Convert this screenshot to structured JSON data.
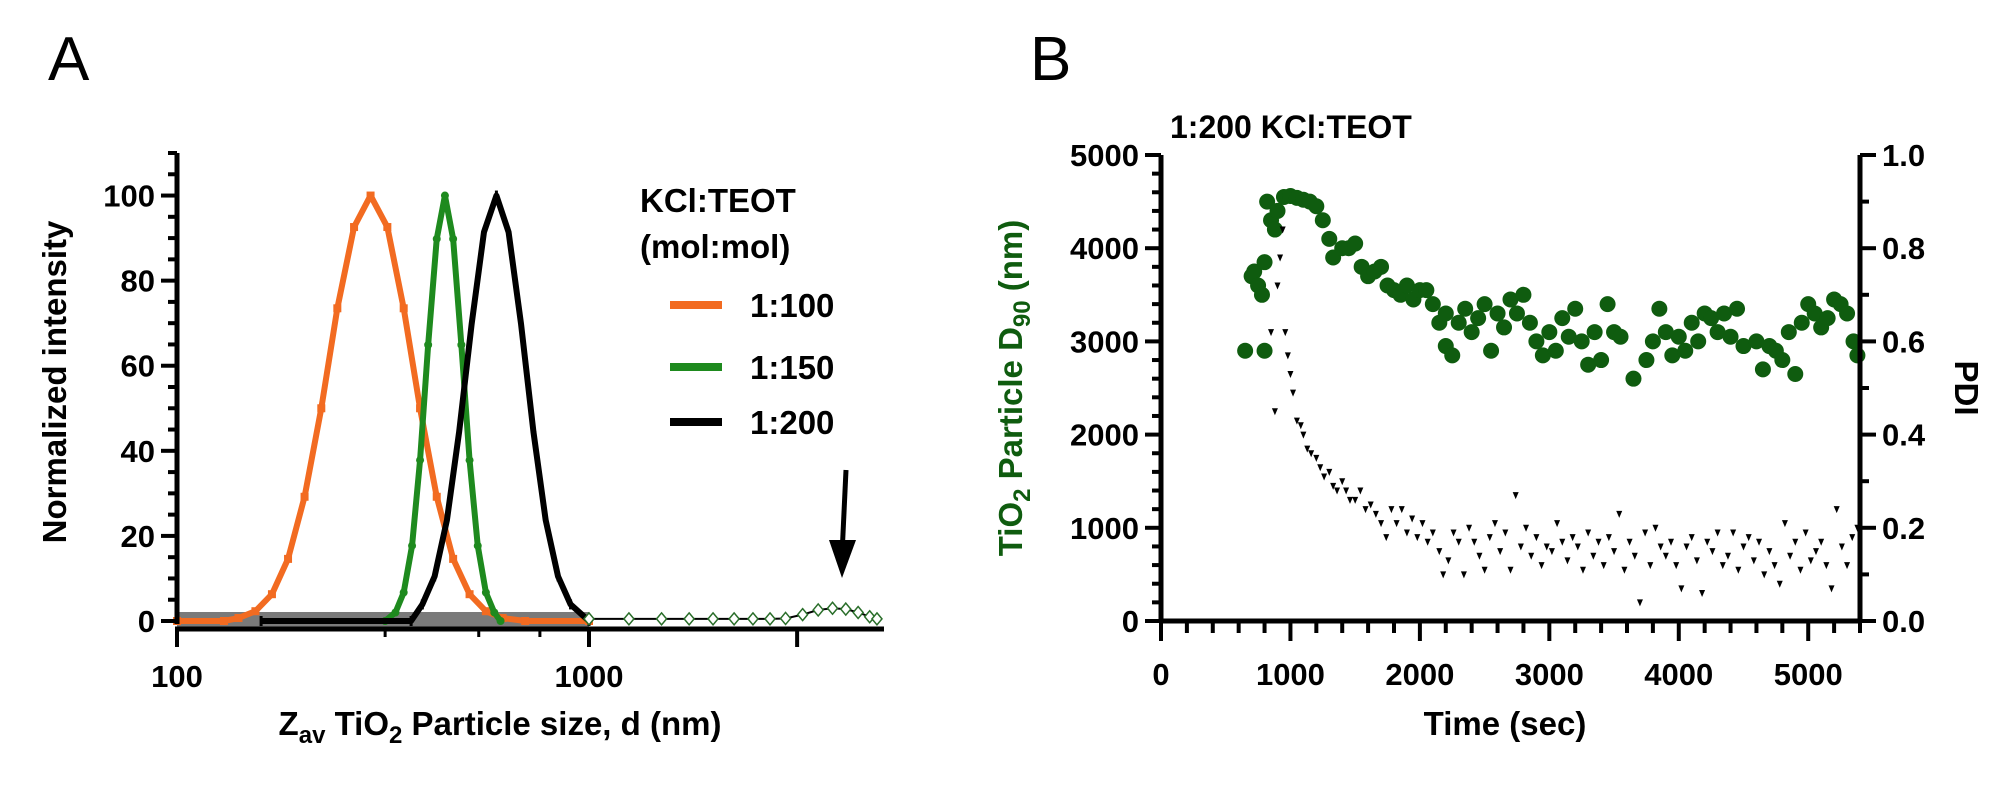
{
  "panels": {
    "a": "A",
    "b": "B"
  },
  "chart_data": [
    {
      "type": "line",
      "panel": "A",
      "xlabel_parts": {
        "z": "Z",
        "z_sub": "av",
        "tio": " TiO",
        "tio_sub": "2",
        "rest": " Particle size, d (nm)"
      },
      "ylabel": "Normalized intensity",
      "x_scale": "log",
      "xlim": [
        100,
        5200
      ],
      "ylim": [
        0,
        110
      ],
      "x_tick_labels": [
        "100",
        "1000"
      ],
      "y_tick_labels": [
        "0",
        "20",
        "40",
        "60",
        "80",
        "100"
      ],
      "legend": {
        "title": "KCl:TEOT",
        "subtitle": "(mol:mol)",
        "placement": "right"
      },
      "annotation": "arrow pointing down at small peak near 4000 nm",
      "series": [
        {
          "name": "1:100",
          "color": "#f26b21",
          "marker": "square",
          "x": [
            100,
            130,
            141,
            155,
            170,
            186,
            204,
            224,
            245,
            269,
            295,
            324,
            355,
            389,
            427,
            468,
            513,
            562,
            617,
            700,
            1000
          ],
          "y": [
            0,
            0,
            0.7,
            2.3,
            6.3,
            14.6,
            29.2,
            50,
            73.5,
            92.6,
            100,
            92.6,
            73.5,
            50,
            29.2,
            14.6,
            6.3,
            2.3,
            0.7,
            0,
            0
          ]
        },
        {
          "name": "1:150",
          "color": "#1e8a1e",
          "marker": "circle",
          "x": [
            320,
            339,
            355,
            372,
            389,
            407,
            427,
            447,
            468,
            490,
            513,
            537,
            562,
            589,
            610
          ],
          "y": [
            0,
            2.0,
            6.7,
            17.7,
            37.8,
            64.9,
            89.8,
            100,
            89.8,
            64.9,
            37.8,
            17.7,
            6.7,
            2.0,
            0
          ]
        },
        {
          "name": "1:200",
          "color": "#000000",
          "marker": "plus",
          "x": [
            160,
            370,
            394,
            422,
            452,
            484,
            519,
            556,
            596,
            638,
            684,
            733,
            785,
            841,
            902,
            1000
          ],
          "y": [
            0,
            0,
            3.9,
            10.5,
            23.7,
            44.5,
            69.8,
            91.4,
            100,
            91.4,
            69.8,
            44.5,
            23.7,
            10.5,
            3.9,
            0
          ]
        },
        {
          "color": "#2a6e2a",
          "marker": "diamond",
          "x": [
            1000,
            1250,
            1500,
            1750,
            2000,
            2250,
            2500,
            2750,
            3000,
            3300,
            3600,
            3900,
            4200,
            4500,
            4800,
            5000
          ],
          "y": [
            0.5,
            0.5,
            0.5,
            0.5,
            0.5,
            0.5,
            0.5,
            0.5,
            0.6,
            1.5,
            2.6,
            3.0,
            2.8,
            2.0,
            1.0,
            0.5
          ]
        }
      ]
    },
    {
      "type": "scatter",
      "panel": "B",
      "title": "1:200 KCl:TEOT",
      "xlabel": "Time (sec)",
      "ylabel_parts": {
        "a": "TiO",
        "a_sub": "2",
        "b": " Particle  D",
        "b_sub": "90",
        "c": "  (nm)"
      },
      "y2label": "PDI",
      "xlim": [
        0,
        5400
      ],
      "ylim": [
        0,
        5000
      ],
      "y2lim": [
        0,
        1.0
      ],
      "x_tick_labels": [
        "0",
        "1000",
        "2000",
        "3000",
        "4000",
        "5000"
      ],
      "y_tick_labels": [
        "0",
        "1000",
        "2000",
        "3000",
        "4000",
        "5000"
      ],
      "y2_tick_labels": [
        "0.0",
        "0.2",
        "0.4",
        "0.6",
        "0.8",
        "1.0"
      ],
      "series": [
        {
          "axis": "left",
          "color": "#0f5c0f",
          "marker": "circle",
          "points": [
            [
              650,
              2900
            ],
            [
              700,
              3700
            ],
            [
              720,
              3750
            ],
            [
              750,
              3600
            ],
            [
              780,
              3500
            ],
            [
              800,
              3850
            ],
            [
              800,
              2900
            ],
            [
              820,
              4500
            ],
            [
              850,
              4300
            ],
            [
              880,
              4200
            ],
            [
              900,
              4400
            ],
            [
              950,
              4550
            ],
            [
              1000,
              4560
            ],
            [
              1050,
              4540
            ],
            [
              1100,
              4520
            ],
            [
              1150,
              4500
            ],
            [
              1200,
              4450
            ],
            [
              1250,
              4300
            ],
            [
              1300,
              4100
            ],
            [
              1330,
              3900
            ],
            [
              1400,
              4000
            ],
            [
              1450,
              4000
            ],
            [
              1500,
              4050
            ],
            [
              1550,
              3800
            ],
            [
              1600,
              3700
            ],
            [
              1650,
              3750
            ],
            [
              1700,
              3800
            ],
            [
              1750,
              3600
            ],
            [
              1800,
              3550
            ],
            [
              1850,
              3500
            ],
            [
              1900,
              3600
            ],
            [
              1950,
              3450
            ],
            [
              2000,
              3550
            ],
            [
              2050,
              3550
            ],
            [
              2100,
              3400
            ],
            [
              2150,
              3200
            ],
            [
              2200,
              3300
            ],
            [
              2200,
              2950
            ],
            [
              2250,
              2850
            ],
            [
              2300,
              3200
            ],
            [
              2350,
              3350
            ],
            [
              2400,
              3100
            ],
            [
              2450,
              3250
            ],
            [
              2500,
              3400
            ],
            [
              2550,
              2900
            ],
            [
              2600,
              3300
            ],
            [
              2650,
              3150
            ],
            [
              2700,
              3450
            ],
            [
              2750,
              3300
            ],
            [
              2800,
              3500
            ],
            [
              2850,
              3200
            ],
            [
              2900,
              3000
            ],
            [
              2950,
              2850
            ],
            [
              3000,
              3100
            ],
            [
              3050,
              2900
            ],
            [
              3100,
              3250
            ],
            [
              3150,
              3050
            ],
            [
              3200,
              3350
            ],
            [
              3250,
              3000
            ],
            [
              3300,
              2750
            ],
            [
              3350,
              3100
            ],
            [
              3400,
              2800
            ],
            [
              3450,
              3400
            ],
            [
              3500,
              3100
            ],
            [
              3550,
              3050
            ],
            [
              3650,
              2600
            ],
            [
              3750,
              2800
            ],
            [
              3800,
              3000
            ],
            [
              3850,
              3350
            ],
            [
              3900,
              3100
            ],
            [
              3950,
              2850
            ],
            [
              4000,
              3050
            ],
            [
              4050,
              2900
            ],
            [
              4100,
              3200
            ],
            [
              4150,
              3000
            ],
            [
              4200,
              3300
            ],
            [
              4250,
              3250
            ],
            [
              4300,
              3100
            ],
            [
              4350,
              3300
            ],
            [
              4400,
              3050
            ],
            [
              4450,
              3350
            ],
            [
              4500,
              2950
            ],
            [
              4600,
              3000
            ],
            [
              4650,
              2700
            ],
            [
              4700,
              2950
            ],
            [
              4750,
              2900
            ],
            [
              4800,
              2800
            ],
            [
              4850,
              3100
            ],
            [
              4900,
              2650
            ],
            [
              4950,
              3200
            ],
            [
              5000,
              3400
            ],
            [
              5050,
              3300
            ],
            [
              5100,
              3150
            ],
            [
              5150,
              3250
            ],
            [
              5200,
              3450
            ],
            [
              5250,
              3400
            ],
            [
              5300,
              3300
            ],
            [
              5350,
              3000
            ],
            [
              5380,
              2850
            ]
          ]
        },
        {
          "axis": "right",
          "color": "#000000",
          "marker": "triangle-down",
          "points": [
            [
              850,
              0.62
            ],
            [
              880,
              0.45
            ],
            [
              900,
              0.72
            ],
            [
              920,
              0.78
            ],
            [
              940,
              0.84
            ],
            [
              960,
              0.62
            ],
            [
              980,
              0.57
            ],
            [
              1000,
              0.53
            ],
            [
              1020,
              0.49
            ],
            [
              1050,
              0.43
            ],
            [
              1080,
              0.42
            ],
            [
              1100,
              0.4
            ],
            [
              1130,
              0.37
            ],
            [
              1160,
              0.36
            ],
            [
              1200,
              0.35
            ],
            [
              1230,
              0.33
            ],
            [
              1260,
              0.31
            ],
            [
              1300,
              0.32
            ],
            [
              1330,
              0.29
            ],
            [
              1360,
              0.28
            ],
            [
              1400,
              0.3
            ],
            [
              1430,
              0.28
            ],
            [
              1460,
              0.26
            ],
            [
              1500,
              0.26
            ],
            [
              1540,
              0.28
            ],
            [
              1580,
              0.24
            ],
            [
              1620,
              0.25
            ],
            [
              1660,
              0.23
            ],
            [
              1700,
              0.21
            ],
            [
              1740,
              0.18
            ],
            [
              1780,
              0.24
            ],
            [
              1820,
              0.21
            ],
            [
              1860,
              0.24
            ],
            [
              1900,
              0.19
            ],
            [
              1940,
              0.22
            ],
            [
              1980,
              0.18
            ],
            [
              2020,
              0.21
            ],
            [
              2060,
              0.17
            ],
            [
              2100,
              0.19
            ],
            [
              2150,
              0.15
            ],
            [
              2180,
              0.1
            ],
            [
              2220,
              0.13
            ],
            [
              2260,
              0.19
            ],
            [
              2300,
              0.17
            ],
            [
              2340,
              0.1
            ],
            [
              2380,
              0.2
            ],
            [
              2420,
              0.17
            ],
            [
              2460,
              0.14
            ],
            [
              2500,
              0.11
            ],
            [
              2540,
              0.18
            ],
            [
              2580,
              0.21
            ],
            [
              2620,
              0.15
            ],
            [
              2660,
              0.19
            ],
            [
              2700,
              0.11
            ],
            [
              2740,
              0.27
            ],
            [
              2780,
              0.16
            ],
            [
              2820,
              0.2
            ],
            [
              2860,
              0.14
            ],
            [
              2900,
              0.18
            ],
            [
              2940,
              0.12
            ],
            [
              2980,
              0.16
            ],
            [
              3020,
              0.15
            ],
            [
              3060,
              0.21
            ],
            [
              3100,
              0.17
            ],
            [
              3140,
              0.13
            ],
            [
              3180,
              0.18
            ],
            [
              3220,
              0.16
            ],
            [
              3260,
              0.11
            ],
            [
              3300,
              0.19
            ],
            [
              3340,
              0.14
            ],
            [
              3380,
              0.17
            ],
            [
              3420,
              0.12
            ],
            [
              3460,
              0.18
            ],
            [
              3500,
              0.15
            ],
            [
              3540,
              0.23
            ],
            [
              3580,
              0.11
            ],
            [
              3620,
              0.17
            ],
            [
              3660,
              0.14
            ],
            [
              3700,
              0.04
            ],
            [
              3740,
              0.19
            ],
            [
              3780,
              0.12
            ],
            [
              3820,
              0.2
            ],
            [
              3860,
              0.16
            ],
            [
              3900,
              0.14
            ],
            [
              3940,
              0.17
            ],
            [
              3980,
              0.12
            ],
            [
              4020,
              0.07
            ],
            [
              4060,
              0.16
            ],
            [
              4100,
              0.18
            ],
            [
              4140,
              0.13
            ],
            [
              4180,
              0.06
            ],
            [
              4220,
              0.17
            ],
            [
              4260,
              0.15
            ],
            [
              4300,
              0.19
            ],
            [
              4340,
              0.12
            ],
            [
              4380,
              0.14
            ],
            [
              4420,
              0.19
            ],
            [
              4460,
              0.11
            ],
            [
              4500,
              0.16
            ],
            [
              4540,
              0.18
            ],
            [
              4580,
              0.13
            ],
            [
              4620,
              0.17
            ],
            [
              4660,
              0.1
            ],
            [
              4700,
              0.15
            ],
            [
              4740,
              0.12
            ],
            [
              4780,
              0.08
            ],
            [
              4820,
              0.21
            ],
            [
              4860,
              0.14
            ],
            [
              4900,
              0.17
            ],
            [
              4940,
              0.11
            ],
            [
              4980,
              0.19
            ],
            [
              5020,
              0.13
            ],
            [
              5060,
              0.15
            ],
            [
              5100,
              0.17
            ],
            [
              5140,
              0.12
            ],
            [
              5180,
              0.07
            ],
            [
              5220,
              0.24
            ],
            [
              5260,
              0.16
            ],
            [
              5300,
              0.12
            ],
            [
              5340,
              0.18
            ],
            [
              5380,
              0.2
            ]
          ]
        }
      ]
    }
  ]
}
